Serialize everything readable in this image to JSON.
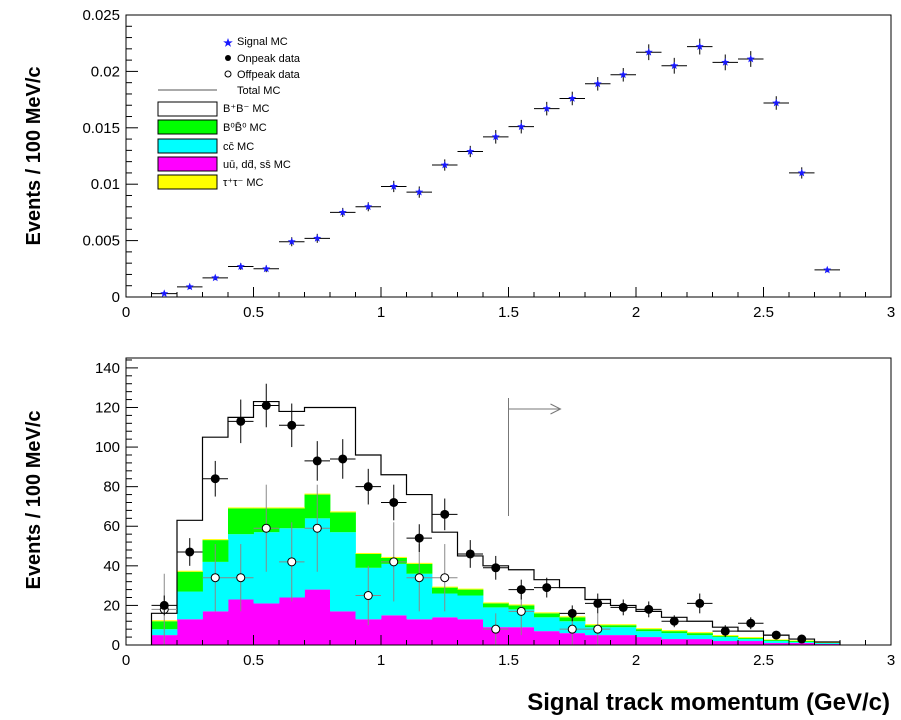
{
  "chart_data": [
    {
      "type": "scatter",
      "ylabel": "Events / 100 MeV/c",
      "xlim": [
        0,
        3
      ],
      "ylim": [
        0,
        0.025
      ],
      "x_ticks": [
        "0",
        "0.5",
        "1",
        "1.5",
        "2",
        "2.5",
        "3"
      ],
      "y_ticks": [
        "0",
        "0.005",
        "0.01",
        "0.015",
        "0.02",
        "0.025"
      ],
      "legend_position": "top-left",
      "legend": [
        {
          "label": "Signal MC",
          "marker": "star"
        },
        {
          "label": "Onpeak data",
          "marker": "filled-circle"
        },
        {
          "label": "Offpeak data",
          "marker": "open-circle"
        },
        {
          "label": "Total MC",
          "marker": "line"
        },
        {
          "label": "B⁺B⁻ MC",
          "marker": "box-white"
        },
        {
          "label": "B⁰B̄⁰ MC",
          "marker": "box-green"
        },
        {
          "label": "cc̄ MC",
          "marker": "box-cyan"
        },
        {
          "label": "uū, dd̄, ss̄ MC",
          "marker": "box-magenta"
        },
        {
          "label": "τ⁺τ⁻ MC",
          "marker": "box-yellow"
        }
      ],
      "series": [
        {
          "name": "Signal MC",
          "color": "#1a1aff",
          "x": [
            0.15,
            0.25,
            0.35,
            0.45,
            0.55,
            0.65,
            0.75,
            0.85,
            0.95,
            1.05,
            1.15,
            1.25,
            1.35,
            1.45,
            1.55,
            1.65,
            1.75,
            1.85,
            1.95,
            2.05,
            2.15,
            2.25,
            2.35,
            2.45,
            2.55,
            2.65,
            2.75
          ],
          "y": [
            0.0003,
            0.0009,
            0.0017,
            0.0027,
            0.0025,
            0.0049,
            0.0052,
            0.0075,
            0.008,
            0.0098,
            0.0093,
            0.0117,
            0.0129,
            0.0142,
            0.0151,
            0.0167,
            0.0176,
            0.0189,
            0.0197,
            0.0217,
            0.0205,
            0.0222,
            0.0208,
            0.0211,
            0.0172,
            0.011,
            0.0024
          ],
          "yerr": [
            0.0001,
            0.0002,
            0.0002,
            0.0003,
            0.0003,
            0.0004,
            0.0004,
            0.0004,
            0.0004,
            0.0005,
            0.0005,
            0.0005,
            0.0005,
            0.0006,
            0.0006,
            0.0006,
            0.0006,
            0.0006,
            0.0006,
            0.0007,
            0.0007,
            0.0007,
            0.0007,
            0.0007,
            0.0006,
            0.0005,
            0.0002
          ]
        }
      ]
    },
    {
      "type": "bar",
      "ylabel": "Events / 100 MeV/c",
      "xlabel": "Signal track momentum  (GeV/c)",
      "xlim": [
        0,
        3
      ],
      "ylim": [
        0,
        145
      ],
      "x_ticks": [
        "0",
        "0.5",
        "1",
        "1.5",
        "2",
        "2.5",
        "3"
      ],
      "y_ticks": [
        "0",
        "20",
        "40",
        "60",
        "80",
        "100",
        "120",
        "140"
      ],
      "cut_line_x": 1.5,
      "bin_edges": [
        0.1,
        0.2,
        0.3,
        0.4,
        0.5,
        0.6,
        0.7,
        0.8,
        0.9,
        1.0,
        1.1,
        1.2,
        1.3,
        1.4,
        1.5,
        1.6,
        1.7,
        1.8,
        1.9,
        2.0,
        2.1,
        2.2,
        2.3,
        2.4,
        2.5,
        2.6,
        2.7,
        2.8
      ],
      "stack": [
        {
          "name": "uū, dd̄, ss̄ MC",
          "color": "#ff00ff",
          "values": [
            5,
            13,
            17,
            23,
            21,
            24,
            28,
            17,
            13,
            15,
            13,
            14,
            13,
            9,
            9,
            7,
            6,
            5,
            5,
            4,
            3,
            3,
            2,
            2,
            1,
            1,
            0.5
          ]
        },
        {
          "name": "cc̄ MC",
          "color": "#00ffff",
          "values": [
            3,
            14,
            25,
            33,
            36,
            35,
            36,
            40,
            26,
            26,
            23,
            12,
            12,
            10,
            9,
            7,
            6,
            4,
            4,
            3,
            3,
            2,
            2,
            1,
            1,
            0.5,
            0.5
          ]
        },
        {
          "name": "B⁰B̄⁰ MC",
          "color": "#00ff00",
          "values": [
            4,
            10,
            11,
            13,
            12,
            10,
            12,
            10,
            7,
            3,
            5,
            3,
            3,
            2,
            2,
            2,
            2,
            1,
            1,
            1,
            1,
            1,
            0.5,
            0.5,
            0.5,
            0.5,
            0
          ]
        },
        {
          "name": "τ⁺τ⁻ MC",
          "color": "#ffff00",
          "values": [
            0.5,
            0.5,
            0.5,
            0.5,
            0.5,
            0.5,
            0.5,
            0.5,
            0.5,
            0.5,
            0.5,
            0.5,
            0.5,
            0.5,
            0.5,
            0.5,
            0.5,
            0.5,
            0.5,
            0.5,
            0.5,
            0.5,
            0.5,
            0.5,
            0.3,
            0.3,
            0.2
          ]
        }
      ],
      "total_mc": [
        16,
        63,
        105,
        115,
        123,
        118,
        120,
        120,
        96,
        86,
        76,
        57,
        45,
        40,
        38,
        33,
        29,
        23,
        20,
        17,
        14,
        12,
        9,
        7,
        5,
        3,
        1.5
      ],
      "onpeak_data": {
        "x": [
          0.15,
          0.25,
          0.35,
          0.45,
          0.55,
          0.65,
          0.75,
          0.85,
          0.95,
          1.05,
          1.15,
          1.25,
          1.35,
          1.45,
          1.55,
          1.65,
          1.75,
          1.85,
          1.95,
          2.05,
          2.15,
          2.25,
          2.35,
          2.45,
          2.55,
          2.65
        ],
        "y": [
          20,
          47,
          84,
          113,
          121,
          111,
          93,
          94,
          80,
          72,
          54,
          66,
          46,
          39,
          28,
          29,
          16,
          21,
          19,
          18,
          12,
          21,
          7,
          11,
          5,
          3
        ],
        "yerr": [
          5,
          7,
          9,
          11,
          11,
          11,
          10,
          10,
          9,
          9,
          7,
          8,
          7,
          6,
          5,
          5,
          4,
          5,
          4,
          4,
          3,
          5,
          3,
          3,
          2,
          2
        ]
      },
      "offpeak_data": {
        "x": [
          0.15,
          0.35,
          0.45,
          0.55,
          0.65,
          0.75,
          0.95,
          1.05,
          1.15,
          1.25,
          1.45,
          1.55,
          1.75,
          1.85
        ],
        "y": [
          18,
          34,
          34,
          59,
          42,
          59,
          25,
          42,
          34,
          34,
          8,
          17,
          8,
          8
        ],
        "yerr": [
          18,
          17,
          17,
          22,
          20,
          22,
          15,
          20,
          17,
          17,
          8,
          12,
          8,
          8
        ]
      }
    }
  ]
}
